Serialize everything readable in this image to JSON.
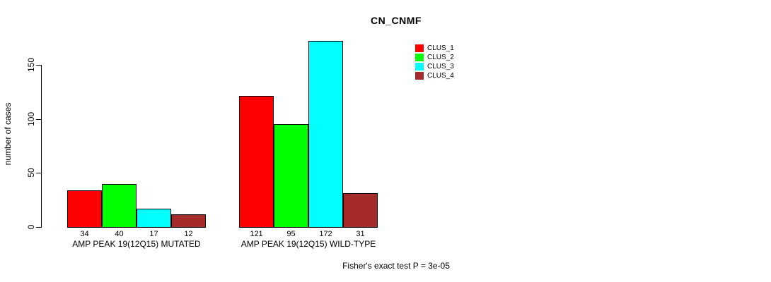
{
  "chart_data": {
    "type": "bar",
    "title": "CN_CNMF",
    "ylabel": "number of cases",
    "xlabel": "",
    "footer": "Fisher's exact test P = 3e-05",
    "ylim": [
      0,
      150
    ],
    "yticks": [
      0,
      50,
      100,
      150
    ],
    "grid": false,
    "legend_position": "top-right",
    "bar_border_color": "#000000",
    "background_color": "#ffffff",
    "series": [
      {
        "name": "CLUS_1",
        "color": "#ff0000"
      },
      {
        "name": "CLUS_2",
        "color": "#00ff00"
      },
      {
        "name": "CLUS_3",
        "color": "#00ffff"
      },
      {
        "name": "CLUS_4",
        "color": "#a52a2a"
      }
    ],
    "categories": [
      "AMP PEAK 19(12Q15) MUTATED",
      "AMP PEAK 19(12Q15) WILD-TYPE"
    ],
    "groups": [
      {
        "label": "AMP PEAK 19(12Q15) MUTATED",
        "values": [
          34,
          40,
          17,
          12
        ]
      },
      {
        "label": "AMP PEAK 19(12Q15) WILD-TYPE",
        "values": [
          121,
          95,
          172,
          31
        ]
      }
    ]
  }
}
